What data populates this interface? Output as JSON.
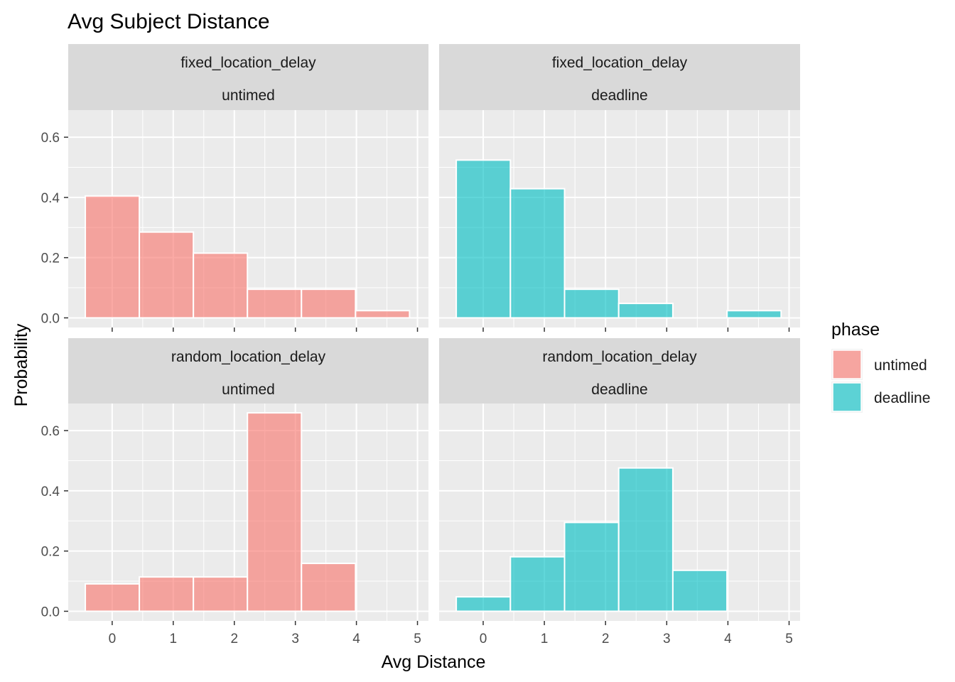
{
  "chart_data": {
    "type": "bar",
    "title": "Avg Subject Distance",
    "xlabel": "Avg Distance",
    "ylabel": "Probability",
    "xlim": [
      -0.72,
      5.18
    ],
    "ylim": [
      -0.032,
      0.69
    ],
    "x_ticks": [
      0,
      1,
      2,
      3,
      4,
      5
    ],
    "y_ticks": [
      0.0,
      0.2,
      0.4,
      0.6
    ],
    "y_tick_labels": [
      "0.0",
      "0.2",
      "0.4",
      "0.6"
    ],
    "grid": true,
    "legend": {
      "title": "phase",
      "position": "right",
      "entries": [
        {
          "label": "untimed",
          "color": "#f8766d"
        },
        {
          "label": "deadline",
          "color": "#00bfc4"
        }
      ]
    },
    "bin_edges": [
      -0.44,
      0.445,
      1.33,
      2.215,
      3.1,
      3.985,
      4.87
    ],
    "panels": [
      {
        "strip_top": "fixed_location_delay",
        "strip_bottom": "untimed",
        "phase": "untimed",
        "values": [
          0.405,
          0.285,
          0.215,
          0.095,
          0.095,
          0.024
        ]
      },
      {
        "strip_top": "fixed_location_delay",
        "strip_bottom": "deadline",
        "phase": "deadline",
        "values": [
          0.524,
          0.429,
          0.095,
          0.048,
          0,
          0.024
        ]
      },
      {
        "strip_top": "random_location_delay",
        "strip_bottom": "untimed",
        "phase": "untimed",
        "values": [
          0.091,
          0.114,
          0.114,
          0.659,
          0.159,
          0
        ]
      },
      {
        "strip_top": "random_location_delay",
        "strip_bottom": "deadline",
        "phase": "deadline",
        "values": [
          0.048,
          0.181,
          0.295,
          0.476,
          0.136,
          0
        ]
      }
    ]
  }
}
